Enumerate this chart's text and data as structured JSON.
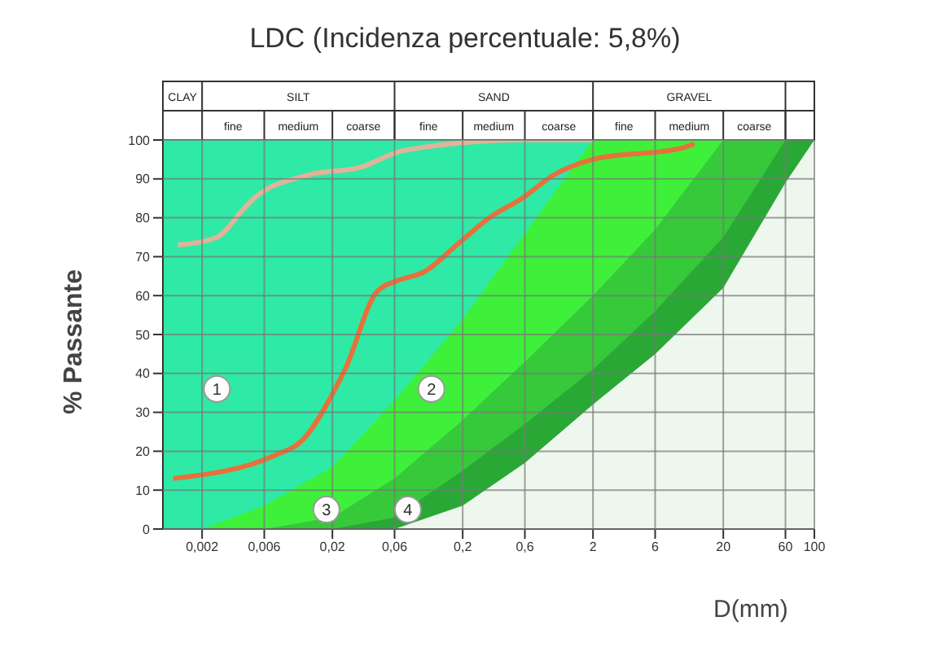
{
  "chart_data": {
    "type": "area",
    "title": "LDC (Incidenza percentuale: 5,8%)",
    "xlabel": "D(mm)",
    "ylabel": "% Passante",
    "log": "x",
    "xlim": [
      0.001,
      100
    ],
    "ylim": [
      0,
      100
    ],
    "xticks": [
      {
        "value": 0.002,
        "label": "0,002"
      },
      {
        "value": 0.006,
        "label": "0,006"
      },
      {
        "value": 0.02,
        "label": "0,02"
      },
      {
        "value": 0.06,
        "label": "0,06"
      },
      {
        "value": 0.2,
        "label": "0,2"
      },
      {
        "value": 0.6,
        "label": "0,6"
      },
      2,
      6,
      20,
      60,
      100
    ],
    "yticks": [
      0,
      10,
      20,
      30,
      40,
      50,
      60,
      70,
      80,
      90,
      100
    ],
    "x": [
      0.001,
      0.002,
      0.006,
      0.02,
      0.06,
      0.2,
      0.6,
      2,
      6,
      20,
      60,
      100
    ],
    "grid": true,
    "legend": false,
    "marker": "none",
    "line_style": "solid",
    "series": [
      {
        "color": "#2eeaa6",
        "values": [
          100,
          100,
          100,
          100,
          100,
          100,
          100,
          100,
          null,
          null,
          null,
          null
        ]
      },
      {
        "color": "#3ef03a",
        "values": [
          null,
          0,
          6,
          16,
          33,
          54,
          76,
          100,
          100,
          100,
          null,
          null
        ]
      },
      {
        "color": "#36c93a",
        "values": [
          null,
          null,
          0,
          3,
          13,
          28,
          43,
          60,
          77,
          100,
          100,
          null
        ]
      },
      {
        "color": "#2aa836",
        "values": [
          null,
          null,
          null,
          0,
          3,
          15,
          27,
          41,
          56,
          75,
          100,
          100
        ]
      },
      {
        "color": "#eef7ee",
        "values": [
          null,
          null,
          null,
          null,
          0,
          6,
          17,
          32,
          45,
          62,
          89,
          100
        ]
      },
      {
        "type": "line",
        "color": "#e0b49a",
        "x": [
          0.0013,
          0.0026,
          0.0041,
          0.005,
          0.013,
          0.033,
          0.065,
          0.094,
          0.57,
          2
        ],
        "values": [
          73,
          75,
          82,
          85,
          91,
          93,
          97,
          98,
          100,
          100
        ]
      },
      {
        "type": "line",
        "color": "#e8703a",
        "x": [
          0.0012,
          0.0073,
          0.0119,
          0.021,
          0.025,
          0.044,
          0.065,
          0.1,
          0.18,
          0.32,
          0.57,
          1,
          2,
          9.8,
          12
        ],
        "values": [
          13,
          19,
          23,
          36,
          41,
          61,
          64,
          66,
          73,
          80,
          85,
          91,
          95,
          98,
          99
        ]
      }
    ],
    "annotations": [
      "CLAY",
      "SILT",
      "SAND",
      "GRAVEL",
      "fine",
      "medium",
      "coarse",
      "fine",
      "medium",
      "coarse",
      "fine",
      "medium",
      "coarse",
      {
        "text": "1",
        "x": 0.0026,
        "y": 36
      },
      {
        "text": "2",
        "x": 0.115,
        "y": 36
      },
      {
        "text": "3",
        "x": 0.018,
        "y": 5
      },
      {
        "text": "4",
        "x": 0.076,
        "y": 5
      }
    ]
  }
}
